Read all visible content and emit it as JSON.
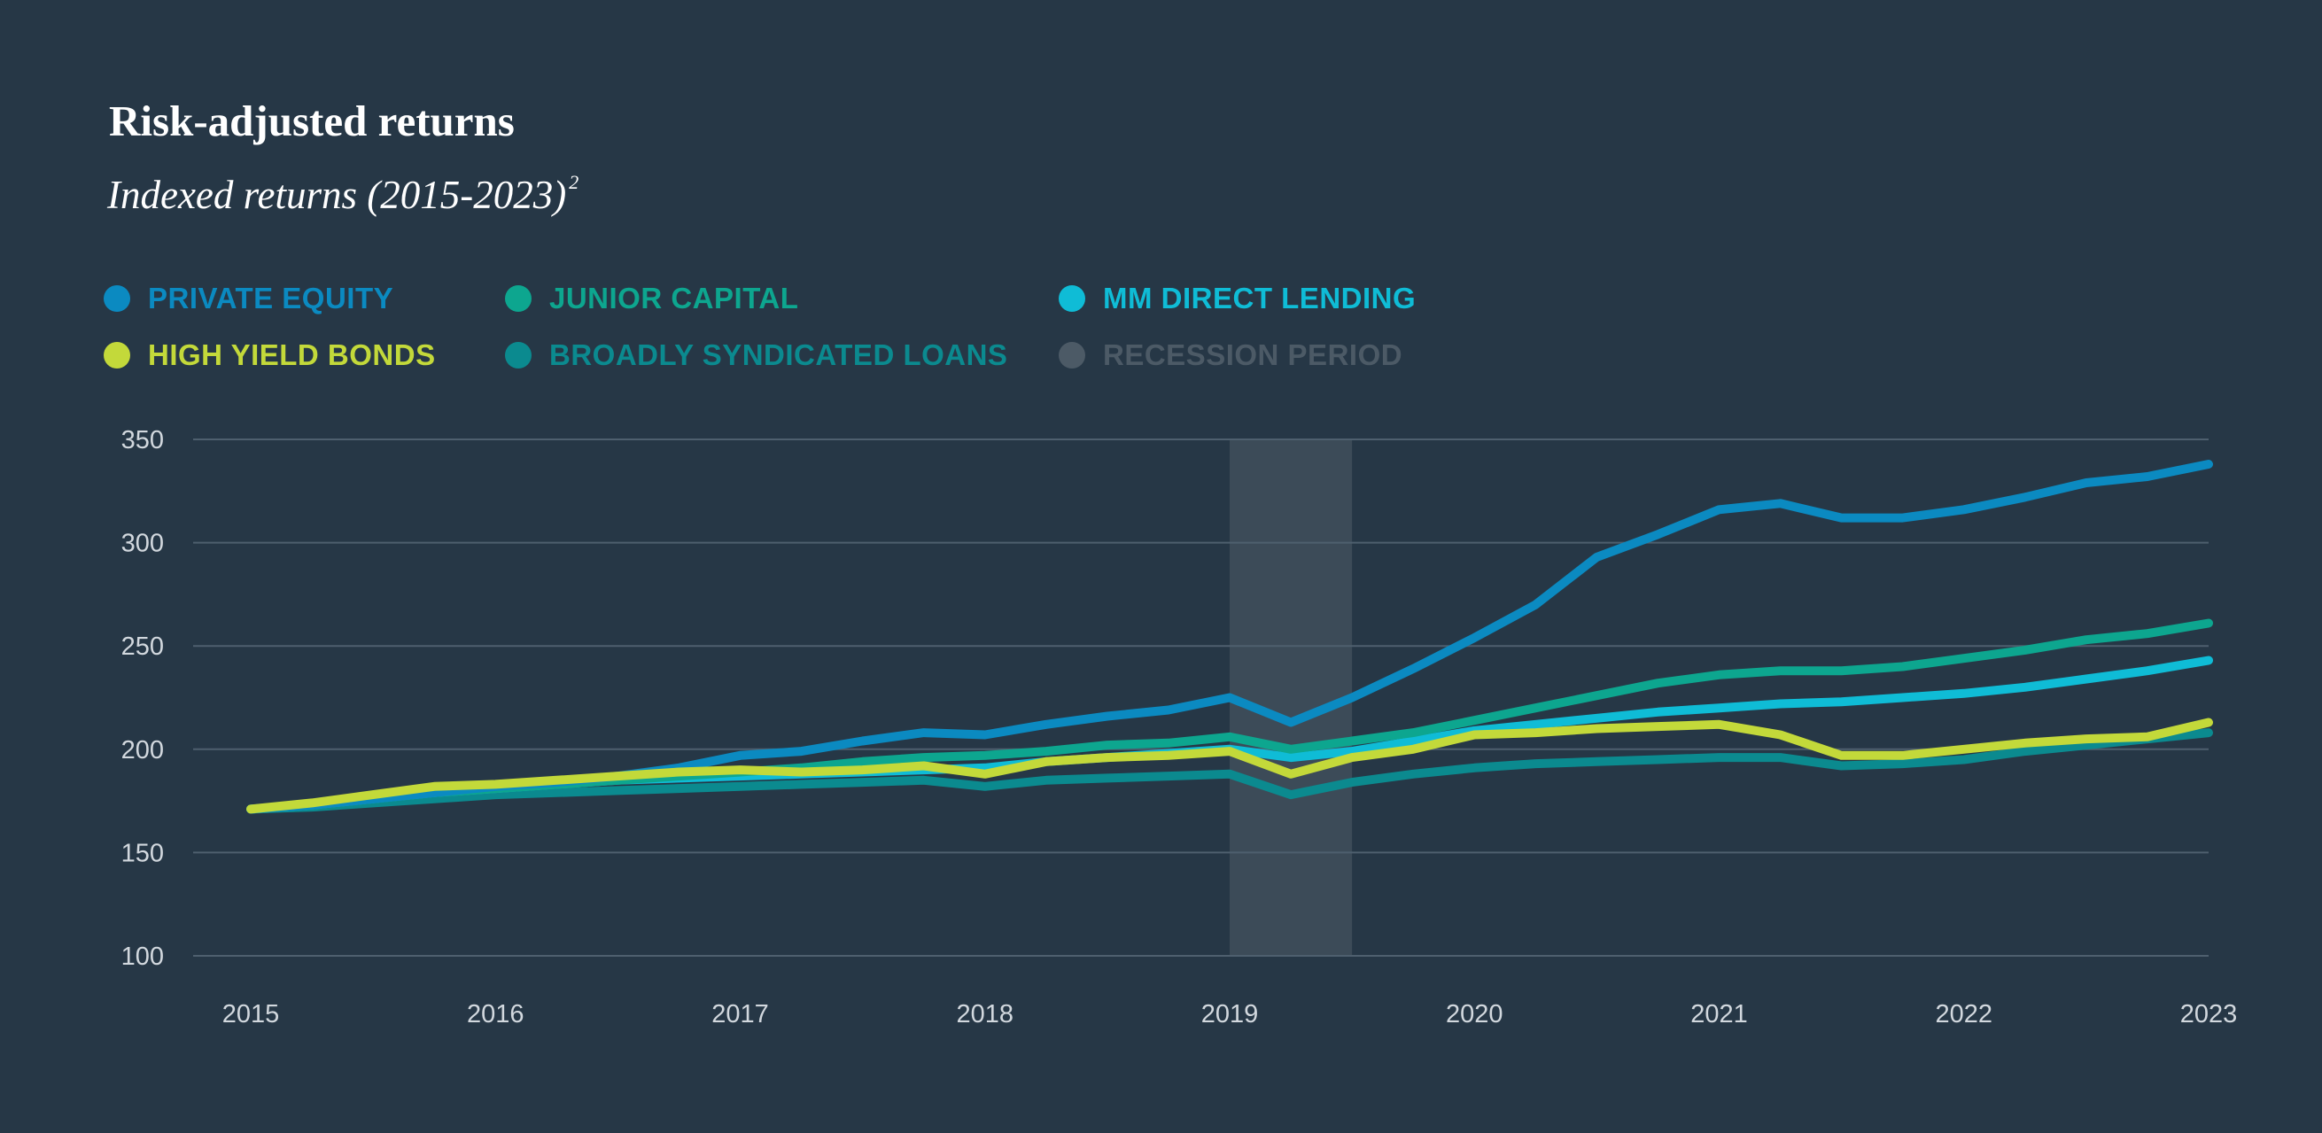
{
  "title": "Risk-adjusted returns",
  "subtitle": {
    "text": "Indexed returns (2015-2023)",
    "footnote": "2"
  },
  "colors": {
    "background": "#263746",
    "gridline": "#4e5f6e",
    "recession": "#3c4b58"
  },
  "legend": [
    {
      "label": "PRIVATE EQUITY",
      "color": "#0b8ac1"
    },
    {
      "label": "JUNIOR CAPITAL",
      "color": "#0da68f"
    },
    {
      "label": "MM DIRECT LENDING",
      "color": "#0fbcd6"
    },
    {
      "label": "HIGH YIELD BONDS",
      "color": "#c3d93a"
    },
    {
      "label": "BROADLY SYNDICATED LOANS",
      "color": "#0b8a8f"
    },
    {
      "label": "RECESSION PERIOD",
      "color": "#4c5a66"
    }
  ],
  "chart_data": {
    "type": "line",
    "x_ticks": [
      "2015",
      "2016",
      "2017",
      "2018",
      "2019",
      "2020",
      "2021",
      "2022",
      "2023"
    ],
    "ylim": [
      100,
      350
    ],
    "y_ticks": [
      350,
      300,
      250,
      200,
      150,
      100
    ],
    "grid": true,
    "legend_position": "top-left",
    "recession_period": [
      2019.0,
      2019.5
    ],
    "x": [
      2015.0,
      2015.25,
      2015.5,
      2015.75,
      2016.0,
      2016.25,
      2016.5,
      2016.75,
      2017.0,
      2017.25,
      2017.5,
      2017.75,
      2018.0,
      2018.25,
      2018.5,
      2018.75,
      2019.0,
      2019.25,
      2019.5,
      2019.75,
      2020.0,
      2020.25,
      2020.5,
      2020.75,
      2021.0,
      2021.25,
      2021.5,
      2021.75,
      2022.0,
      2022.25,
      2022.5,
      2022.75,
      2023.0
    ],
    "series": [
      {
        "name": "PRIVATE EQUITY",
        "color": "#0b8ac1",
        "values": [
          171,
          173,
          176,
          179,
          182,
          184,
          187,
          191,
          197,
          199,
          204,
          208,
          207,
          212,
          216,
          219,
          225,
          213,
          225,
          239,
          254,
          270,
          293,
          304,
          316,
          319,
          312,
          312,
          316,
          322,
          329,
          332,
          338
        ]
      },
      {
        "name": "JUNIOR CAPITAL",
        "color": "#0da68f",
        "values": [
          171,
          173,
          176,
          179,
          181,
          183,
          185,
          187,
          189,
          191,
          194,
          196,
          197,
          199,
          202,
          203,
          206,
          200,
          204,
          208,
          214,
          220,
          226,
          232,
          236,
          238,
          238,
          240,
          244,
          248,
          253,
          256,
          261
        ]
      },
      {
        "name": "MM DIRECT LENDING",
        "color": "#0fbcd6",
        "values": [
          171,
          173,
          176,
          179,
          181,
          183,
          185,
          186,
          187,
          188,
          189,
          190,
          191,
          194,
          196,
          198,
          200,
          196,
          199,
          204,
          209,
          212,
          215,
          218,
          220,
          222,
          223,
          225,
          227,
          230,
          234,
          238,
          243
        ]
      },
      {
        "name": "HIGH YIELD BONDS",
        "color": "#c3d93a",
        "values": [
          171,
          174,
          178,
          182,
          183,
          185,
          187,
          189,
          190,
          189,
          190,
          192,
          188,
          194,
          196,
          197,
          199,
          188,
          196,
          200,
          207,
          208,
          210,
          211,
          212,
          207,
          197,
          197,
          200,
          203,
          205,
          206,
          213
        ]
      },
      {
        "name": "BROADLY SYNDICATED LOANS",
        "color": "#0b8a8f",
        "values": [
          171,
          172,
          174,
          176,
          178,
          179,
          180,
          181,
          182,
          183,
          184,
          185,
          182,
          185,
          186,
          187,
          188,
          178,
          184,
          188,
          191,
          193,
          194,
          195,
          196,
          196,
          192,
          193,
          195,
          199,
          202,
          205,
          208
        ]
      }
    ]
  }
}
